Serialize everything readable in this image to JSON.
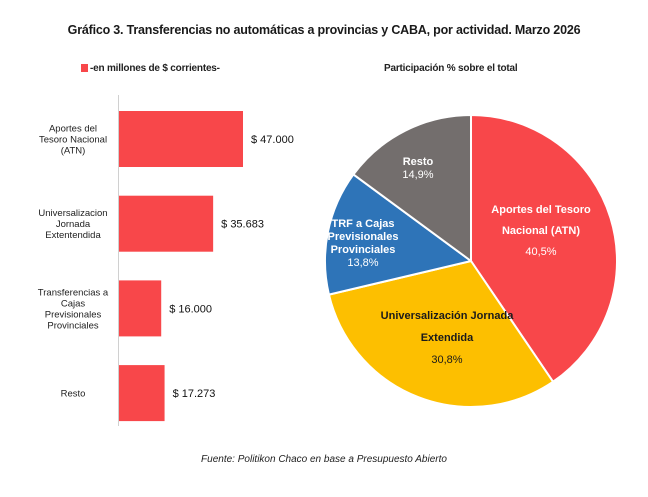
{
  "title": "Gráfico 3. Transferencias no automáticas a provincias y CABA, por actividad. Marzo 2026",
  "source": "Fuente: Politikon Chaco en base a Presupuesto Abierto",
  "chart_data": [
    {
      "type": "bar",
      "orientation": "horizontal",
      "legend": "-en millones de $ corrientes-",
      "legend_color": "#f8474a",
      "categories": [
        [
          "Aportes del",
          "Tesoro Nacional",
          "(ATN)"
        ],
        [
          "Universalizacion",
          "Jornada",
          "Extentendida"
        ],
        [
          "Transferencias a",
          "Cajas",
          "Previsionales",
          "Provinciales"
        ],
        [
          "Resto"
        ]
      ],
      "values": [
        47000,
        35683,
        16000,
        17273
      ],
      "value_labels": [
        "$ 47.000",
        "$ 35.683",
        "$ 16.000",
        "$ 17.273"
      ],
      "bar_color": "#f8474a",
      "xlim": [
        0,
        47000
      ]
    },
    {
      "type": "pie",
      "title": "Participación % sobre el total",
      "slices": [
        {
          "label": [
            "Aportes del Tesoro",
            "Nacional (ATN)"
          ],
          "value": 40.5,
          "pct_label": "40,5%",
          "color": "#f8474a",
          "text_color": "#ffffff"
        },
        {
          "label": [
            "Universalización Jornada",
            "Extendida"
          ],
          "value": 30.8,
          "pct_label": "30,8%",
          "color": "#fdbf00",
          "text_color": "#1a1a1a"
        },
        {
          "label": [
            "TRF a Cajas",
            "Previsionales",
            "Provinciales"
          ],
          "value": 13.8,
          "pct_label": "13,8%",
          "color": "#2e74b8",
          "text_color": "#ffffff"
        },
        {
          "label": [
            "Resto"
          ],
          "value": 14.9,
          "pct_label": "14,9%",
          "color": "#736e6d",
          "text_color": "#ffffff"
        }
      ]
    }
  ]
}
